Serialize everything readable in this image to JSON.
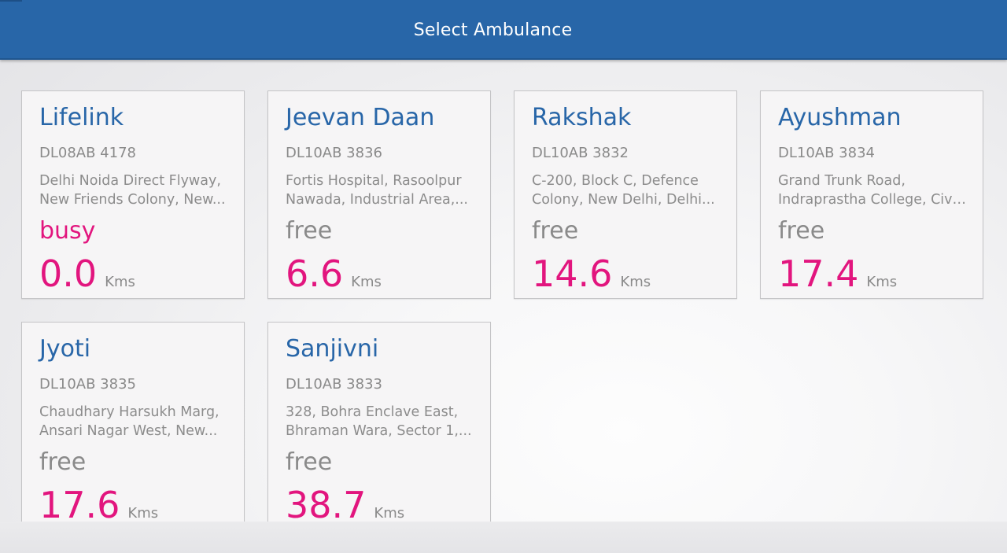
{
  "header": {
    "title": "Select Ambulance",
    "color": "#2866a8"
  },
  "accent_color": "#e2157e",
  "ambulances": [
    {
      "name": "Lifelink",
      "registration": "DL08AB 4178",
      "address_line1": "Delhi Noida Direct Flyway,",
      "address_line2": "New Friends Colony, New...",
      "status": "busy",
      "distance": "0.0",
      "unit": "Kms"
    },
    {
      "name": "Jeevan Daan",
      "registration": "DL10AB 3836",
      "address_line1": "Fortis Hospital, Rasoolpur",
      "address_line2": "Nawada, Industrial Area,...",
      "status": "free",
      "distance": "6.6",
      "unit": "Kms"
    },
    {
      "name": "Rakshak",
      "registration": "DL10AB 3832",
      "address_line1": "C-200, Block C, Defence",
      "address_line2": "Colony, New Delhi, Delhi...",
      "status": "free",
      "distance": "14.6",
      "unit": "Kms"
    },
    {
      "name": "Ayushman",
      "registration": "DL10AB 3834",
      "address_line1": "Grand Trunk Road,",
      "address_line2": "Indraprastha College, Civi...",
      "status": "free",
      "distance": "17.4",
      "unit": "Kms"
    },
    {
      "name": "Jyoti",
      "registration": "DL10AB 3835",
      "address_line1": "Chaudhary Harsukh Marg,",
      "address_line2": "Ansari Nagar West, New...",
      "status": "free",
      "distance": "17.6",
      "unit": "Kms"
    },
    {
      "name": "Sanjivni",
      "registration": "DL10AB 3833",
      "address_line1": "328, Bohra Enclave East,",
      "address_line2": "Bhraman Wara, Sector 1,...",
      "status": "free",
      "distance": "38.7",
      "unit": "Kms"
    }
  ]
}
